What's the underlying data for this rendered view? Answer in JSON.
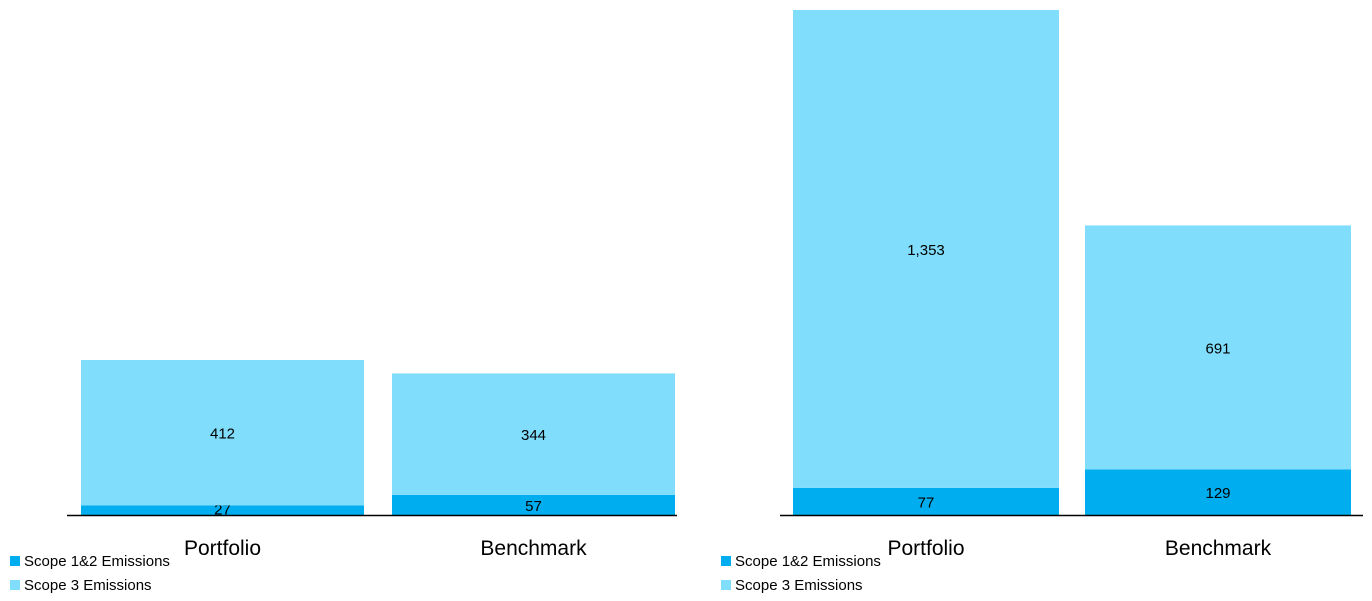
{
  "chart_data": [
    {
      "type": "bar",
      "stacked": true,
      "categories": [
        "Portfolio",
        "Benchmark"
      ],
      "series": [
        {
          "name": "Scope 1&2 Emissions",
          "values": [
            27,
            57
          ],
          "color": "#00aeef"
        },
        {
          "name": "Scope 3 Emissions",
          "values": [
            412,
            344
          ],
          "color": "#80ddfb"
        }
      ],
      "value_labels": {
        "Scope 1&2 Emissions": [
          "27",
          "57"
        ],
        "Scope 3 Emissions": [
          "412",
          "344"
        ]
      },
      "ylim": [
        0,
        439
      ],
      "legend": "bottom-left"
    },
    {
      "type": "bar",
      "stacked": true,
      "categories": [
        "Portfolio",
        "Benchmark"
      ],
      "series": [
        {
          "name": "Scope 1&2 Emissions",
          "values": [
            77,
            129
          ],
          "color": "#00aeef"
        },
        {
          "name": "Scope 3 Emissions",
          "values": [
            1353,
            691
          ],
          "color": "#80ddfb"
        }
      ],
      "value_labels": {
        "Scope 1&2 Emissions": [
          "77",
          "129"
        ],
        "Scope 3 Emissions": [
          "1,353",
          "691"
        ]
      },
      "ylim": [
        0,
        1430
      ],
      "legend": "bottom-left"
    }
  ]
}
